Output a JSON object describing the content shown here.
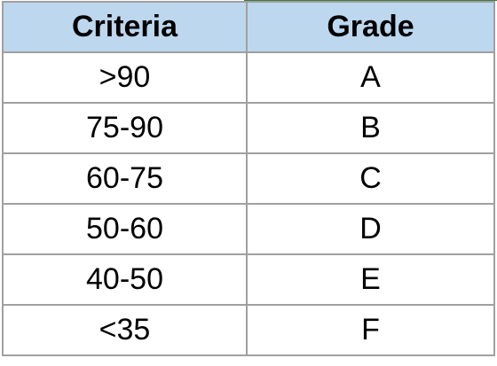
{
  "table": {
    "headers": {
      "criteria": "Criteria",
      "grade": "Grade"
    },
    "rows": [
      {
        "criteria": ">90",
        "grade": "A"
      },
      {
        "criteria": "75-90",
        "grade": "B"
      },
      {
        "criteria": "60-75",
        "grade": "C"
      },
      {
        "criteria": "50-60",
        "grade": "D"
      },
      {
        "criteria": "40-50",
        "grade": "E"
      },
      {
        "criteria": "<35",
        "grade": "F"
      }
    ]
  },
  "colors": {
    "header_fill": "#bdd7ee",
    "border": "#a0a0a0",
    "top_edge": "#3a7d44"
  }
}
